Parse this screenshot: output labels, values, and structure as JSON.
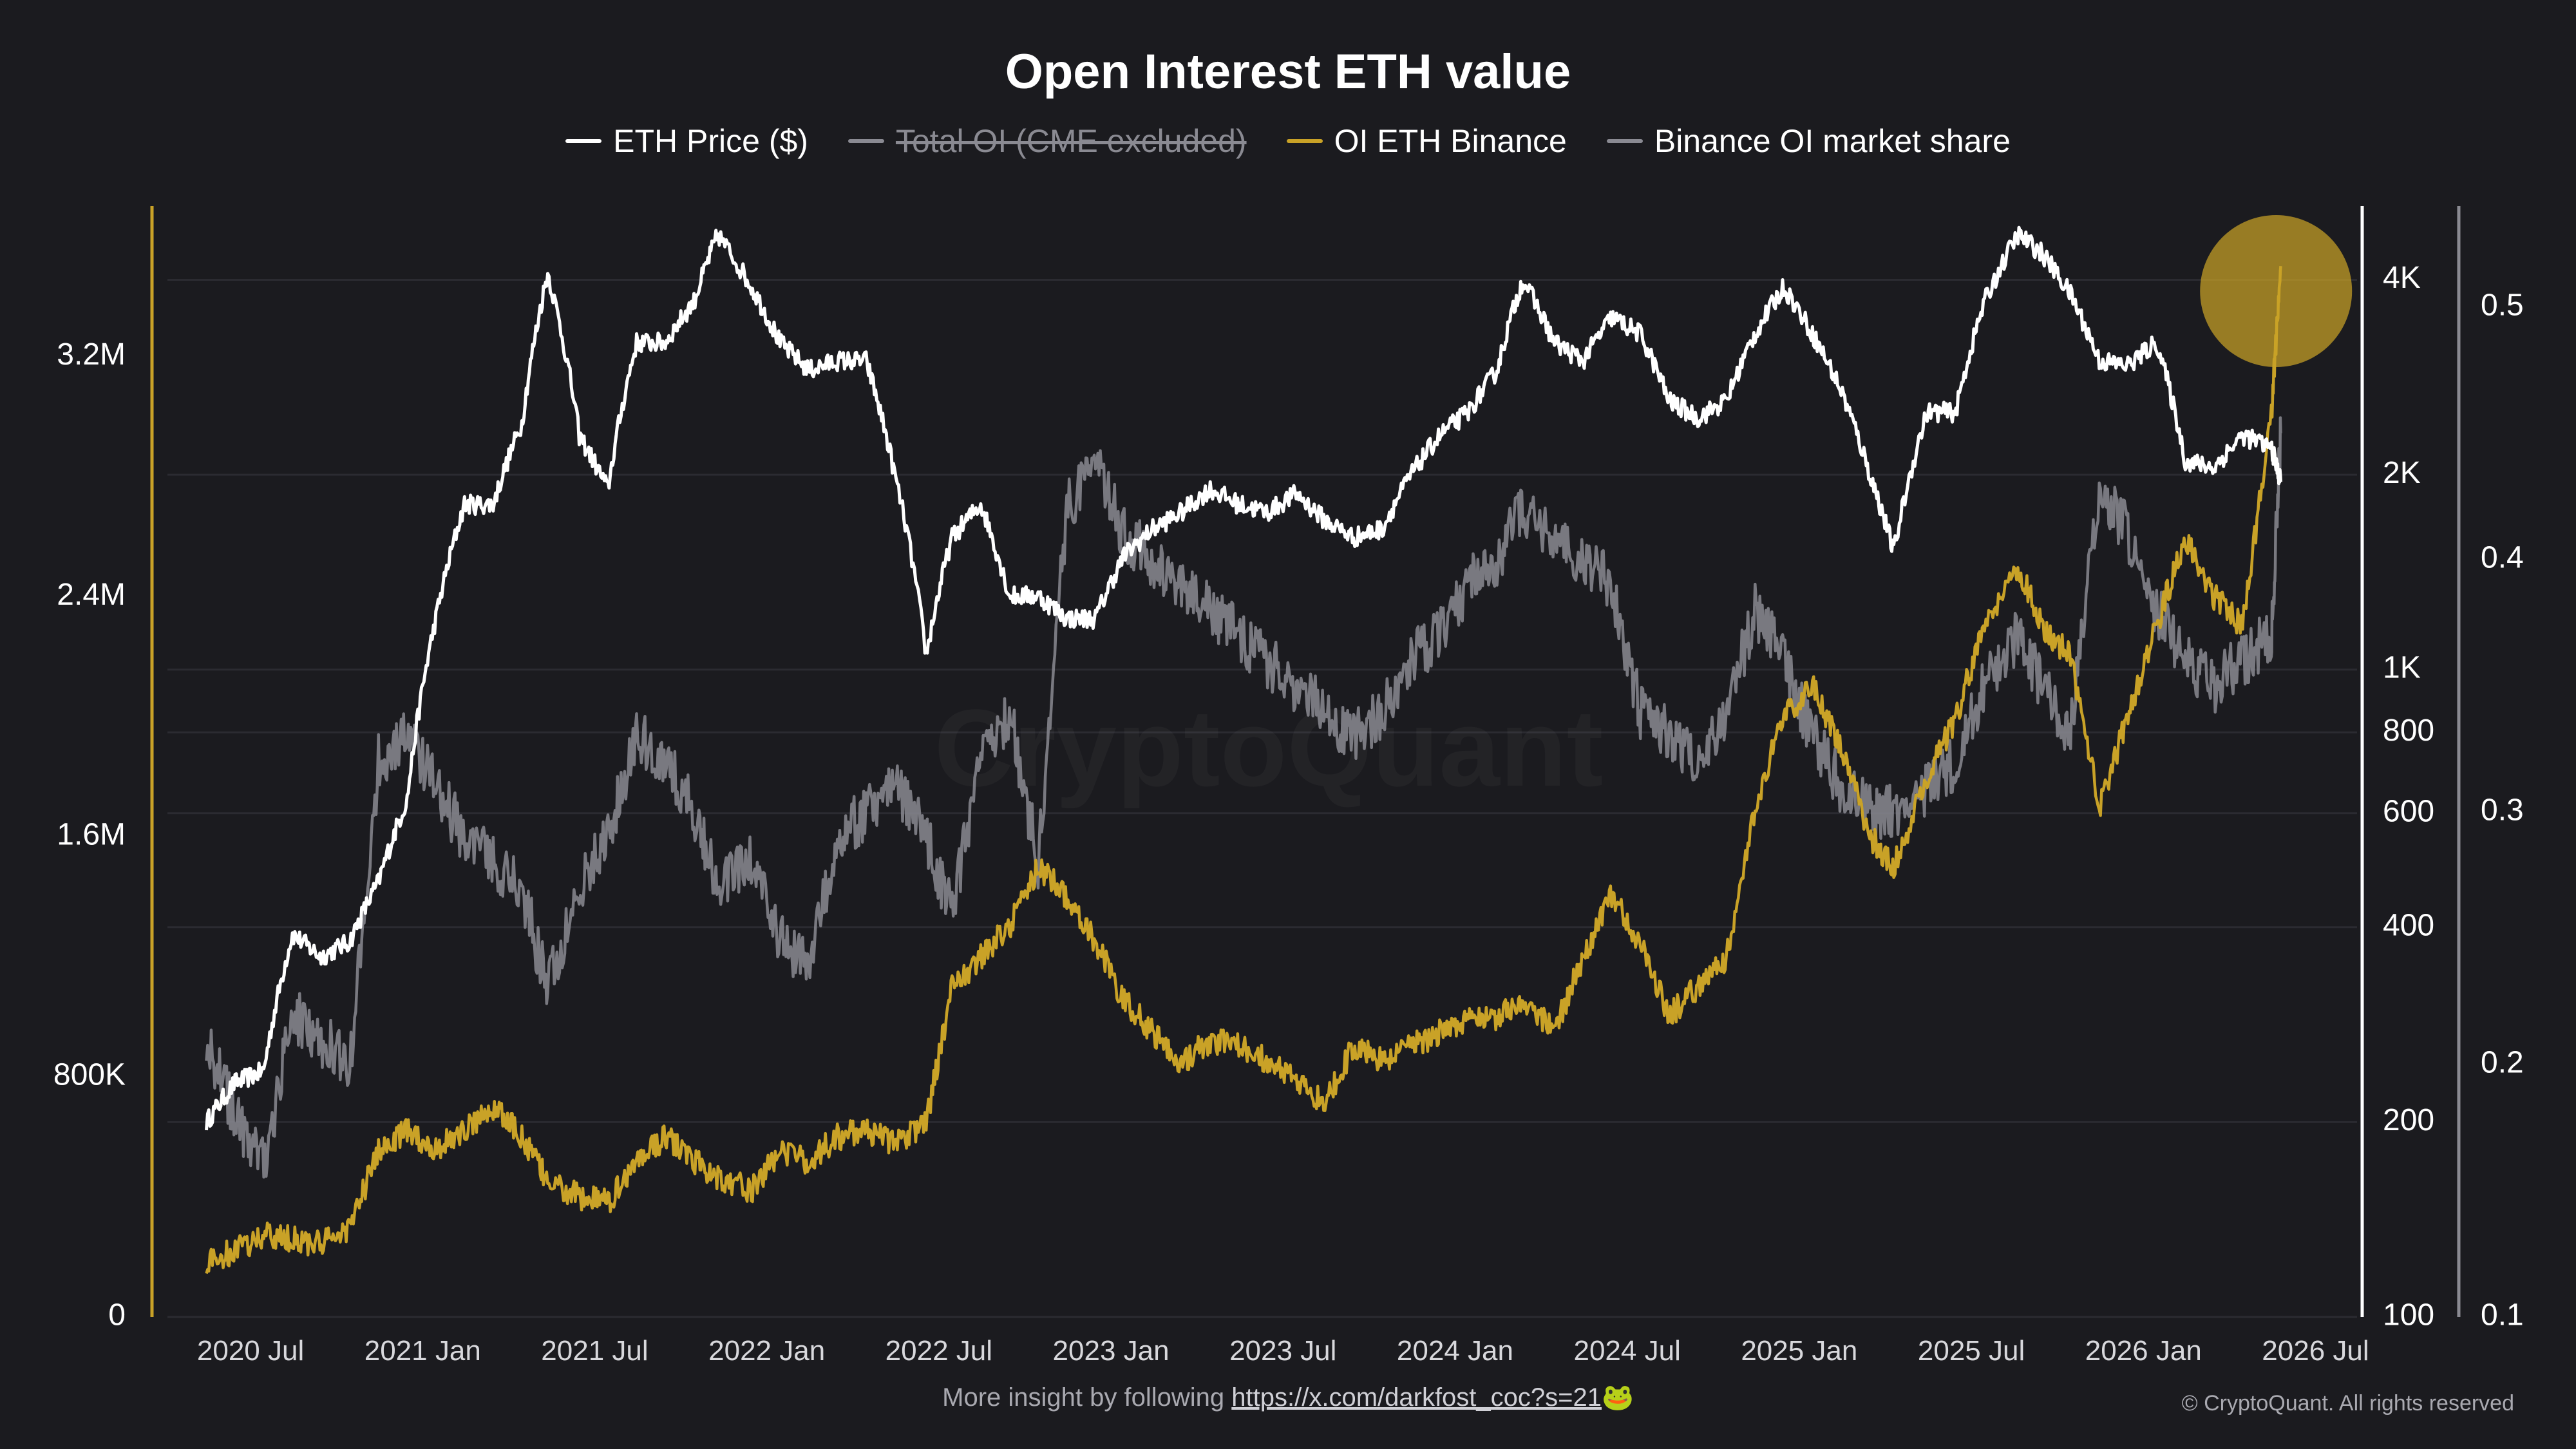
{
  "chart_data": {
    "type": "line",
    "title": "Open Interest ETH value",
    "watermark": "CryptoQuant",
    "legend_placement": "top-center",
    "grid": true,
    "x_ticks": [
      "2020 Jul",
      "2021 Jan",
      "2021 Jul",
      "2022 Jan",
      "2022 Jul",
      "2023 Jan",
      "2023 Jul",
      "2024 Jan",
      "2024 Jul",
      "2025 Jan",
      "2025 Jul",
      "2026 Jan",
      "2026 Jul"
    ],
    "x_range": [
      "2020-05",
      "2026-07"
    ],
    "axes": {
      "left": {
        "series": "OI ETH Binance",
        "range": [
          0,
          3700000
        ],
        "ticks": [
          0,
          800000,
          1600000,
          2400000,
          3200000
        ],
        "tick_labels": [
          "0",
          "800K",
          "1.6M",
          "2.4M",
          "3.2M"
        ],
        "color": "#c9a227"
      },
      "right_price": {
        "series": "ETH Price ($)",
        "scale": "log",
        "range": [
          100,
          5200
        ],
        "ticks": [
          100,
          200,
          400,
          600,
          800,
          1000,
          2000,
          4000
        ],
        "tick_labels": [
          "100",
          "200",
          "400",
          "600",
          "800",
          "1K",
          "2K",
          "4K"
        ],
        "color": "#ffffff"
      },
      "right_share": {
        "series": "Binance OI market share",
        "range": [
          0.1,
          0.54
        ],
        "ticks": [
          0.1,
          0.2,
          0.3,
          0.4,
          0.5
        ],
        "tick_labels": [
          "0.1",
          "0.2",
          "0.3",
          "0.4",
          "0.5"
        ],
        "color": "#8a8a92"
      }
    },
    "series": [
      {
        "name": "ETH Price ($)",
        "color": "#ffffff",
        "axis": "right_price",
        "visible": true,
        "x": [
          "2020-05-15",
          "2020-06-15",
          "2020-07-15",
          "2020-08-15",
          "2020-09-15",
          "2020-10-15",
          "2020-11-15",
          "2020-12-15",
          "2021-01-15",
          "2021-02-15",
          "2021-03-15",
          "2021-04-15",
          "2021-05-12",
          "2021-06-15",
          "2021-07-15",
          "2021-08-15",
          "2021-09-15",
          "2021-10-15",
          "2021-11-10",
          "2021-12-15",
          "2022-01-15",
          "2022-02-15",
          "2022-03-15",
          "2022-04-15",
          "2022-05-15",
          "2022-06-18",
          "2022-07-15",
          "2022-08-15",
          "2022-09-15",
          "2022-10-15",
          "2022-11-15",
          "2022-12-15",
          "2023-01-15",
          "2023-02-15",
          "2023-03-15",
          "2023-04-15",
          "2023-05-15",
          "2023-06-15",
          "2023-07-15",
          "2023-08-15",
          "2023-09-15",
          "2023-10-15",
          "2023-11-15",
          "2023-12-15",
          "2024-01-15",
          "2024-02-15",
          "2024-03-12",
          "2024-04-15",
          "2024-05-15",
          "2024-06-15",
          "2024-07-15",
          "2024-08-15",
          "2024-09-15",
          "2024-10-15",
          "2024-11-15",
          "2024-12-15",
          "2025-01-15",
          "2025-02-15",
          "2025-03-15",
          "2025-04-10",
          "2025-05-15",
          "2025-06-15",
          "2025-07-15",
          "2025-08-20",
          "2025-09-15",
          "2025-10-15",
          "2025-11-15",
          "2025-12-15",
          "2026-01-15",
          "2026-02-15",
          "2026-03-15",
          "2026-04-15",
          "2026-05-15",
          "2026-05-25"
        ],
        "values": [
          200,
          230,
          240,
          390,
          360,
          380,
          470,
          630,
          1200,
          1800,
          1800,
          2400,
          4100,
          2300,
          1900,
          3200,
          3200,
          3700,
          4700,
          3900,
          3200,
          2900,
          3000,
          3000,
          2000,
          1050,
          1600,
          1800,
          1300,
          1300,
          1200,
          1200,
          1500,
          1650,
          1750,
          1900,
          1800,
          1750,
          1870,
          1700,
          1600,
          1650,
          2000,
          2300,
          2500,
          2900,
          4000,
          3200,
          3000,
          3500,
          3300,
          2600,
          2450,
          2600,
          3300,
          3900,
          3300,
          2700,
          2000,
          1520,
          2500,
          2500,
          3700,
          4700,
          4400,
          3800,
          3000,
          2950,
          3200,
          2100,
          2050,
          2300,
          2200,
          1950
        ]
      },
      {
        "name": "Total OI (CME excluded)",
        "color": "#8a8a92",
        "axis": "left",
        "visible": false,
        "values": []
      },
      {
        "name": "OI ETH Binance",
        "color": "#c9a227",
        "axis": "left",
        "visible": true,
        "x": [
          "2020-05-15",
          "2020-06-15",
          "2020-07-15",
          "2020-08-15",
          "2020-09-15",
          "2020-10-15",
          "2020-11-15",
          "2020-12-15",
          "2021-01-15",
          "2021-02-15",
          "2021-03-15",
          "2021-04-15",
          "2021-05-12",
          "2021-06-15",
          "2021-07-15",
          "2021-08-15",
          "2021-09-15",
          "2021-10-15",
          "2021-11-10",
          "2021-12-15",
          "2022-01-15",
          "2022-02-15",
          "2022-03-15",
          "2022-04-15",
          "2022-05-15",
          "2022-06-18",
          "2022-07-15",
          "2022-08-15",
          "2022-09-15",
          "2022-10-15",
          "2022-11-15",
          "2022-12-15",
          "2023-01-15",
          "2023-02-15",
          "2023-03-15",
          "2023-04-15",
          "2023-05-15",
          "2023-06-15",
          "2023-07-15",
          "2023-08-15",
          "2023-09-15",
          "2023-10-15",
          "2023-11-15",
          "2023-12-15",
          "2024-01-15",
          "2024-02-15",
          "2024-03-12",
          "2024-04-15",
          "2024-05-15",
          "2024-06-15",
          "2024-07-15",
          "2024-08-15",
          "2024-09-15",
          "2024-10-15",
          "2024-11-15",
          "2024-12-15",
          "2025-01-15",
          "2025-02-15",
          "2025-03-15",
          "2025-04-10",
          "2025-05-15",
          "2025-06-15",
          "2025-07-15",
          "2025-08-20",
          "2025-09-15",
          "2025-10-15",
          "2025-11-15",
          "2025-12-15",
          "2026-01-15",
          "2026-02-15",
          "2026-03-15",
          "2026-04-15",
          "2026-05-15",
          "2026-05-25"
        ],
        "values": [
          180000,
          220000,
          270000,
          260000,
          240000,
          300000,
          550000,
          620000,
          560000,
          620000,
          700000,
          600000,
          450000,
          400000,
          380000,
          520000,
          600000,
          520000,
          470000,
          420000,
          550000,
          520000,
          600000,
          620000,
          580000,
          650000,
          1100000,
          1200000,
          1300000,
          1500000,
          1400000,
          1250000,
          1050000,
          950000,
          850000,
          920000,
          900000,
          850000,
          780000,
          720000,
          900000,
          850000,
          900000,
          950000,
          1000000,
          1000000,
          1050000,
          950000,
          1200000,
          1400000,
          1250000,
          1000000,
          1100000,
          1200000,
          1700000,
          2000000,
          2100000,
          1900000,
          1600000,
          1500000,
          1800000,
          2000000,
          2300000,
          2500000,
          2300000,
          2200000,
          1700000,
          2000000,
          2300000,
          2600000,
          2400000,
          2300000,
          3000000,
          3500000
        ]
      },
      {
        "name": "Binance OI market share",
        "color": "#8a8a92",
        "axis": "right_share",
        "visible": true,
        "x": [
          "2020-05-15",
          "2020-06-15",
          "2020-07-15",
          "2020-08-15",
          "2020-09-15",
          "2020-10-15",
          "2020-11-15",
          "2020-12-15",
          "2021-01-15",
          "2021-02-15",
          "2021-03-15",
          "2021-04-15",
          "2021-05-12",
          "2021-06-15",
          "2021-07-15",
          "2021-08-15",
          "2021-09-15",
          "2021-10-15",
          "2021-11-10",
          "2021-12-15",
          "2022-01-15",
          "2022-02-15",
          "2022-03-15",
          "2022-04-15",
          "2022-05-15",
          "2022-06-18",
          "2022-07-15",
          "2022-08-15",
          "2022-09-15",
          "2022-10-15",
          "2022-11-15",
          "2022-12-15",
          "2023-01-15",
          "2023-02-15",
          "2023-03-15",
          "2023-04-15",
          "2023-05-15",
          "2023-06-15",
          "2023-07-15",
          "2023-08-15",
          "2023-09-15",
          "2023-10-15",
          "2023-11-15",
          "2023-12-15",
          "2024-01-15",
          "2024-02-15",
          "2024-03-12",
          "2024-04-15",
          "2024-05-15",
          "2024-06-15",
          "2024-07-15",
          "2024-08-15",
          "2024-09-15",
          "2024-10-15",
          "2024-11-15",
          "2024-12-15",
          "2025-01-15",
          "2025-02-15",
          "2025-03-15",
          "2025-04-10",
          "2025-05-15",
          "2025-06-15",
          "2025-07-15",
          "2025-08-20",
          "2025-09-15",
          "2025-10-15",
          "2025-11-15",
          "2025-12-15",
          "2026-01-15",
          "2026-02-15",
          "2026-03-15",
          "2026-04-15",
          "2026-05-15",
          "2026-05-25"
        ],
        "values": [
          0.21,
          0.18,
          0.16,
          0.22,
          0.21,
          0.2,
          0.32,
          0.33,
          0.31,
          0.29,
          0.28,
          0.27,
          0.23,
          0.27,
          0.29,
          0.33,
          0.32,
          0.3,
          0.27,
          0.28,
          0.25,
          0.24,
          0.29,
          0.3,
          0.31,
          0.29,
          0.26,
          0.32,
          0.34,
          0.28,
          0.42,
          0.44,
          0.41,
          0.4,
          0.39,
          0.38,
          0.37,
          0.36,
          0.35,
          0.34,
          0.33,
          0.34,
          0.36,
          0.37,
          0.39,
          0.4,
          0.42,
          0.41,
          0.4,
          0.39,
          0.34,
          0.33,
          0.32,
          0.34,
          0.38,
          0.36,
          0.33,
          0.31,
          0.3,
          0.3,
          0.31,
          0.32,
          0.35,
          0.37,
          0.35,
          0.33,
          0.43,
          0.41,
          0.38,
          0.36,
          0.35,
          0.36,
          0.37,
          0.45
        ]
      }
    ],
    "annotations": [
      {
        "type": "circle-highlight",
        "at_date": "2026-05-20",
        "color": "#c9a227"
      }
    ]
  },
  "footer": {
    "text": "More insight by following",
    "link": "https://x.com/darkfost_coc?s=21",
    "emoji": "🐸"
  },
  "copyright": "© CryptoQuant. All rights reserved"
}
